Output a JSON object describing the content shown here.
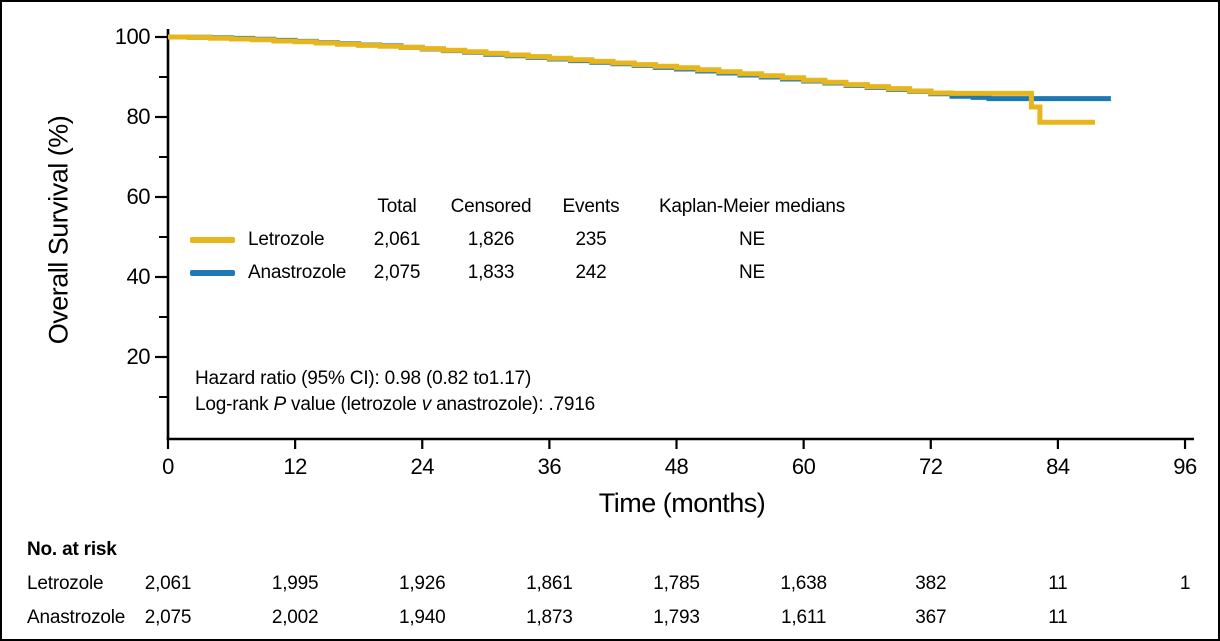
{
  "legend": {
    "headers": {
      "total": "Total",
      "censored": "Censored",
      "events": "Events",
      "medians": "Kaplan-Meier medians"
    },
    "rows": [
      {
        "name": "Letrozole",
        "total": "2,061",
        "censored": "1,826",
        "events": "235",
        "median": "NE"
      },
      {
        "name": "Anastrozole",
        "total": "2,075",
        "censored": "1,833",
        "events": "242",
        "median": "NE"
      }
    ]
  },
  "annotations": {
    "hazard_line": "Hazard ratio (95% CI): 0.98 (0.82 to1.17)",
    "logrank": {
      "pre": "Log-rank ",
      "p": "P",
      "mid": " value (letrozole ",
      "v": "v",
      "post": " anastrozole): .7916"
    }
  },
  "at_risk": {
    "title": "No. at risk",
    "time_points": [
      0,
      12,
      24,
      36,
      48,
      60,
      72,
      84,
      96
    ],
    "rows": [
      {
        "label": "Letrozole",
        "values": [
          "2,061",
          "1,995",
          "1,926",
          "1,861",
          "1,785",
          "1,638",
          "382",
          "11",
          "1"
        ]
      },
      {
        "label": "Anastrozole",
        "values": [
          "2,075",
          "2,002",
          "1,940",
          "1,873",
          "1,793",
          "1,611",
          "367",
          "11"
        ]
      }
    ]
  },
  "chart_data": {
    "type": "line",
    "subtype": "kaplan-meier-step",
    "title": "",
    "xlabel": "Time (months)",
    "ylabel": "Overall Survival (%)",
    "xlim": [
      0,
      96
    ],
    "ylim": [
      0,
      100
    ],
    "x_ticks": [
      0,
      12,
      24,
      36,
      48,
      60,
      72,
      84,
      96
    ],
    "y_ticks_major": [
      20,
      40,
      60,
      80,
      100
    ],
    "y_ticks_minor": [
      10,
      30,
      50,
      70,
      90
    ],
    "grid": false,
    "legend_position": "inside-center-left",
    "axis_color": "#000000",
    "series": [
      {
        "name": "Letrozole",
        "color": "#E7B51C",
        "points": [
          [
            0,
            100
          ],
          [
            2,
            99.9
          ],
          [
            4,
            99.7
          ],
          [
            6,
            99.5
          ],
          [
            8,
            99.3
          ],
          [
            10,
            99.0
          ],
          [
            12,
            98.8
          ],
          [
            14,
            98.5
          ],
          [
            16,
            98.2
          ],
          [
            18,
            97.9
          ],
          [
            20,
            97.7
          ],
          [
            22,
            97.4
          ],
          [
            24,
            97.1
          ],
          [
            26,
            96.7
          ],
          [
            28,
            96.3
          ],
          [
            30,
            95.9
          ],
          [
            32,
            95.5
          ],
          [
            34,
            95.1
          ],
          [
            36,
            94.7
          ],
          [
            38,
            94.3
          ],
          [
            40,
            93.9
          ],
          [
            42,
            93.5
          ],
          [
            44,
            93.1
          ],
          [
            46,
            92.7
          ],
          [
            48,
            92.3
          ],
          [
            50,
            91.8
          ],
          [
            52,
            91.3
          ],
          [
            54,
            90.8
          ],
          [
            56,
            90.3
          ],
          [
            58,
            89.8
          ],
          [
            60,
            89.2
          ],
          [
            62,
            88.7
          ],
          [
            64,
            88.1
          ],
          [
            66,
            87.6
          ],
          [
            68,
            87.1
          ],
          [
            70,
            86.5
          ],
          [
            72,
            86.0
          ],
          [
            74,
            85.9
          ],
          [
            81.3,
            85.9
          ],
          [
            81.5,
            82.5
          ],
          [
            82.3,
            78.7
          ],
          [
            87.5,
            78.7
          ]
        ]
      },
      {
        "name": "Anastrozole",
        "color": "#1E78B4",
        "points": [
          [
            0,
            100
          ],
          [
            2,
            99.95
          ],
          [
            4,
            99.8
          ],
          [
            6,
            99.65
          ],
          [
            8,
            99.45
          ],
          [
            10,
            99.15
          ],
          [
            12,
            98.9
          ],
          [
            14,
            98.6
          ],
          [
            16,
            98.3
          ],
          [
            18,
            98.0
          ],
          [
            20,
            97.8
          ],
          [
            22,
            97.4
          ],
          [
            24,
            97.0
          ],
          [
            26,
            96.6
          ],
          [
            28,
            96.2
          ],
          [
            30,
            95.7
          ],
          [
            32,
            95.3
          ],
          [
            34,
            94.9
          ],
          [
            36,
            94.5
          ],
          [
            38,
            94.1
          ],
          [
            40,
            93.7
          ],
          [
            42,
            93.3
          ],
          [
            44,
            92.9
          ],
          [
            46,
            92.4
          ],
          [
            48,
            92.0
          ],
          [
            50,
            91.5
          ],
          [
            52,
            91.0
          ],
          [
            54,
            90.5
          ],
          [
            56,
            90.0
          ],
          [
            58,
            89.5
          ],
          [
            60,
            89.0
          ],
          [
            62,
            88.5
          ],
          [
            64,
            87.9
          ],
          [
            66,
            87.4
          ],
          [
            68,
            86.9
          ],
          [
            70,
            86.4
          ],
          [
            72,
            85.8
          ],
          [
            74,
            85.2
          ],
          [
            76,
            84.9
          ],
          [
            77.5,
            84.6
          ],
          [
            89,
            84.6
          ]
        ]
      }
    ]
  }
}
